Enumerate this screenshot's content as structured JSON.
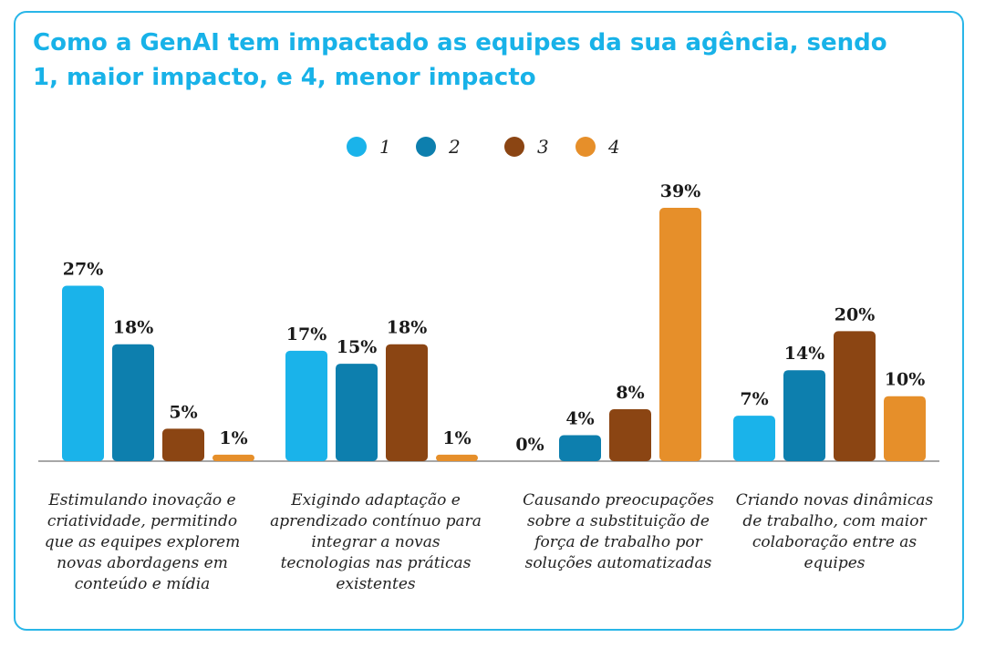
{
  "chart_data": {
    "type": "bar",
    "title": "Como a GenAI tem impactado as equipes da sua agência, sendo 1, maior impacto, e 4, menor impacto",
    "xlabel": "",
    "ylabel": "",
    "ylim": [
      0,
      40
    ],
    "grid": false,
    "legend_position": "top-center",
    "categories": [
      "Estimulando inovação e criatividade, permitindo que as equipes explorem novas abordagens em conteúdo e mídia",
      "Exigindo adaptação e aprendizado contínuo para integrar a novas tecnologias nas práticas existentes",
      "Causando preocupações sobre a substituição de força de trabalho por soluções automatizadas",
      "Criando novas dinâmicas de trabalho, com maior colaboração entre as equipes"
    ],
    "series": [
      {
        "name": "1",
        "color": "#1ab3ea",
        "values": [
          27,
          17,
          0,
          7
        ],
        "labels": [
          "27%",
          "17%",
          "0%",
          "7%"
        ]
      },
      {
        "name": "2",
        "color": "#0d7fae",
        "values": [
          18,
          15,
          4,
          14
        ],
        "labels": [
          "18%",
          "15%",
          "4%",
          "14%"
        ]
      },
      {
        "name": "3",
        "color": "#8b4513",
        "values": [
          5,
          18,
          8,
          20
        ],
        "labels": [
          "5%",
          "18%",
          "8%",
          "20%"
        ]
      },
      {
        "name": "4",
        "color": "#e68f2a",
        "values": [
          1,
          1,
          39,
          10
        ],
        "labels": [
          "1%",
          "1%",
          "39%",
          "10%"
        ]
      }
    ]
  }
}
